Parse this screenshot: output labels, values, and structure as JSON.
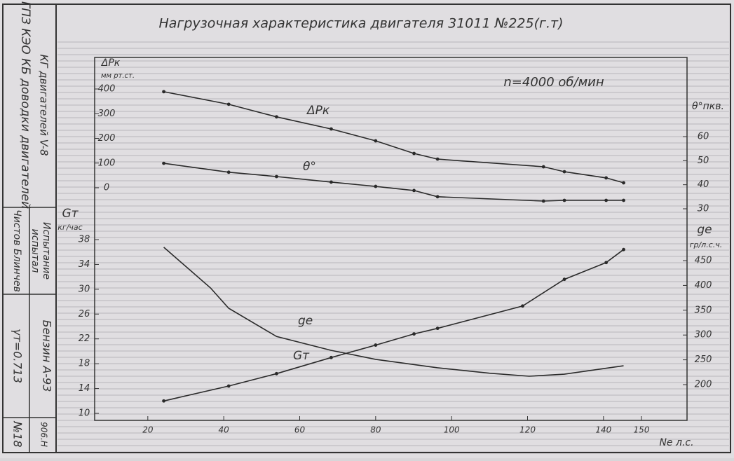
{
  "chart_data": {
    "type": "line",
    "title": "Нагрузочная характеристика двигателя 31011 №225(г.т)",
    "annotation": "n=4000 об/мин",
    "xlabel": "Ne л.с.",
    "xlim": [
      6,
      162
    ],
    "xticks": [
      20,
      40,
      60,
      80,
      100,
      120,
      140,
      150
    ],
    "y1label": "ΔPк",
    "y1unit": "мм рт.ст.",
    "y1lim": [
      0,
      400
    ],
    "y1ticks": [
      0,
      100,
      200,
      300,
      400
    ],
    "y2label": "θ°пкв.",
    "y2lim": [
      30,
      60
    ],
    "y2ticks": [
      30,
      40,
      50,
      60
    ],
    "y3label": "Gт",
    "y3unit": "кг/час",
    "y3lim": [
      10,
      38
    ],
    "y3ticks": [
      10,
      14,
      18,
      22,
      26,
      30,
      34,
      38
    ],
    "y4label": "ge",
    "y4unit": "гр/л.с.ч.",
    "y4lim": [
      200,
      450
    ],
    "y4ticks": [
      200,
      250,
      300,
      350,
      400,
      450
    ],
    "color": "#2a2a2a",
    "series": [
      {
        "name": "ΔPк",
        "axis": "y1",
        "markers": true,
        "x": [
          24.2,
          41.3,
          53.9,
          68.3,
          80,
          90.1,
          96.3,
          124.2,
          129.7,
          140.7,
          145.3
        ],
        "values": [
          389,
          338,
          287,
          238,
          190,
          139,
          116,
          85,
          65,
          40,
          20
        ]
      },
      {
        "name": "θ°",
        "axis": "y2",
        "markers": true,
        "x": [
          24.2,
          41.3,
          53.9,
          68.3,
          80,
          90.1,
          96.3,
          124.2,
          129.7,
          140.7,
          145.3
        ],
        "values": [
          48.9,
          45.2,
          43.4,
          41.1,
          39.3,
          37.6,
          35,
          33.2,
          33.5,
          33.5,
          33.5
        ]
      },
      {
        "name": "Gт",
        "axis": "y3",
        "markers": true,
        "x": [
          24.2,
          41.3,
          53.9,
          68.3,
          80,
          90.1,
          96.3,
          118.7,
          129.7,
          140.7,
          145.3
        ],
        "values": [
          12.0,
          14.4,
          16.4,
          19.0,
          21.0,
          22.8,
          23.7,
          27.3,
          31.6,
          34.3,
          36.4
        ]
      },
      {
        "name": "ge",
        "axis": "y4",
        "markers": false,
        "x": [
          24.2,
          36.5,
          41.3,
          53.9,
          68.3,
          80,
          96.3,
          110,
          120.4,
          129.7,
          145.3
        ],
        "values": [
          477,
          395,
          354,
          297,
          269,
          251,
          234,
          223,
          217,
          221,
          238
        ]
      }
    ]
  },
  "stamp": {
    "org": "ГПЗ КЭО КБ доводки двигателей",
    "dept": "КГ двигателей V-8",
    "test": "Испытание",
    "tested": "испытал",
    "names": "Чистов Блинчев",
    "fuel": "Бензин А-93",
    "density": "γт=0.713",
    "number": "№18",
    "code": "906.Н"
  }
}
